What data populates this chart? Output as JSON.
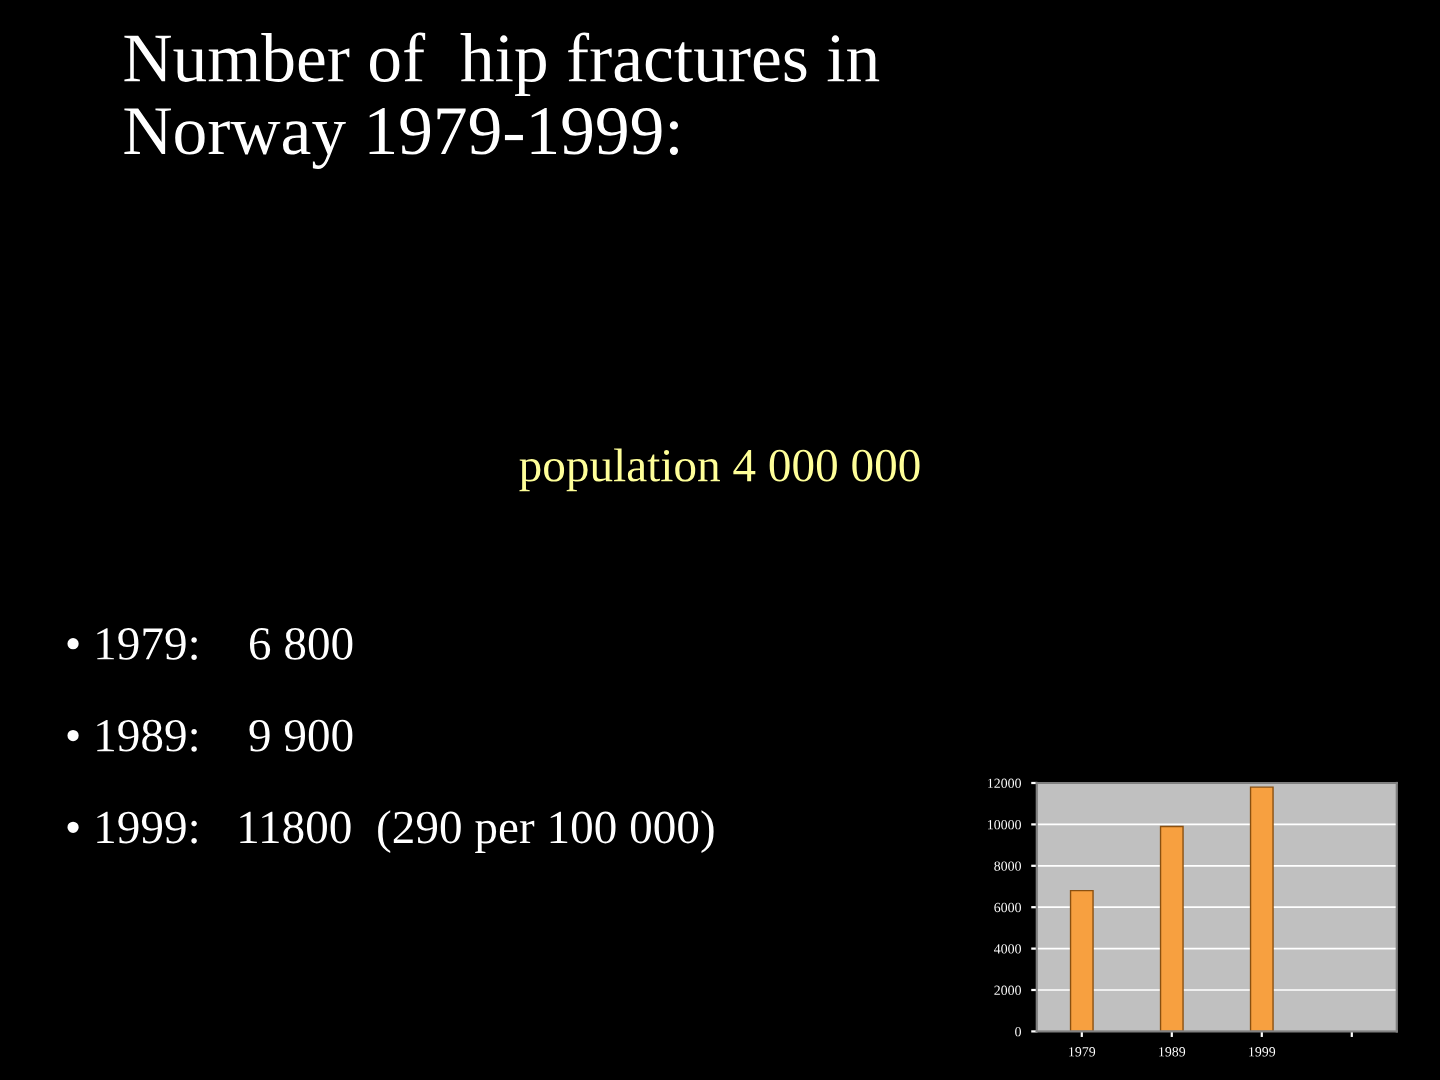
{
  "chart_data": {
    "type": "bar",
    "title": "Number of  hip fractures in\nNorway 1979-1999:",
    "subtitle": "population 4 000 000",
    "annotations": [
      "• 1979:    6 800",
      "• 1989:    9 900",
      "• 1999:   11800  (290 per 100 000)"
    ],
    "categories": [
      "1979",
      "1989",
      "1999",
      null
    ],
    "values": [
      6800,
      9900,
      11800,
      null
    ],
    "color": "#f7a040",
    "ylim": [
      0,
      12000
    ],
    "yticks": [
      0,
      2000,
      4000,
      6000,
      8000,
      10000,
      12000
    ],
    "grid": "y"
  }
}
